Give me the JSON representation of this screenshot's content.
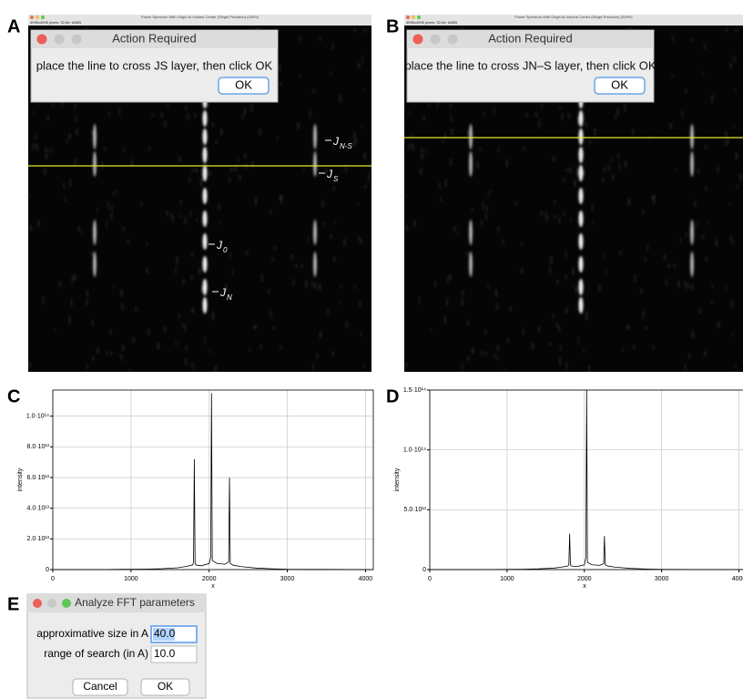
{
  "figure": {
    "panel_labels": [
      "A",
      "B",
      "C",
      "D",
      "E"
    ]
  },
  "image_a": {
    "window_title": "Power Spectrum With Origin At Volume Center (Single Precision) (200%)",
    "window_info": "4096x4096 pixels; 32-bit; 64MB",
    "dialog": {
      "title": "Action Required",
      "message": "place the line to cross JS layer, then click OK",
      "button": "OK"
    },
    "annotations": [
      {
        "main": "J",
        "sub": "N-S"
      },
      {
        "main": "J",
        "sub": "S"
      },
      {
        "main": "J",
        "sub": "0"
      },
      {
        "main": "J",
        "sub": "N"
      }
    ]
  },
  "image_b": {
    "window_title": "Power Spectrum With Origin At Volume Center (Single Precision) (200%)",
    "window_info": "4096x4096 pixels; 32-bit; 64MB",
    "dialog": {
      "title": "Action Required",
      "message": "place the line to cross JN–S layer, then click OK",
      "button": "OK"
    }
  },
  "chart_data": [
    {
      "type": "line",
      "x_label": "x",
      "y_label": "intensity",
      "x": [
        0,
        200,
        400,
        600,
        800,
        1000,
        1200,
        1400,
        1600,
        1700,
        1790,
        1800,
        1810,
        1820,
        1830,
        1900,
        2000,
        2020,
        2030,
        2040,
        2100,
        2200,
        2250,
        2260,
        2270,
        2300,
        2400,
        2500,
        2600,
        2800,
        3000,
        3500,
        4096
      ],
      "series": [
        {
          "color": "#000000",
          "values": [
            0,
            0,
            0,
            0,
            100000000000.0,
            200000000000.0,
            300000000000.0,
            600000000000.0,
            1200000000000.0,
            2000000000000.0,
            3000000000000.0,
            5000000000000.0,
            72000000000000.0,
            4000000000000.0,
            3000000000000.0,
            2500000000000.0,
            4000000000000.0,
            8000000000000.0,
            115000000000000.0,
            6000000000000.0,
            4000000000000.0,
            3500000000000.0,
            5000000000000.0,
            60000000000000.0,
            4000000000000.0,
            3000000000000.0,
            2000000000000.0,
            1500000000000.0,
            1000000000000.0,
            500000000000.0,
            200000000000.0,
            100000000000.0,
            0
          ]
        }
      ],
      "xlim": [
        0,
        4100
      ],
      "ylim": [
        0,
        117000000000000.0
      ],
      "xticks": [
        0,
        1000,
        2000,
        3000,
        4000
      ],
      "yticks": [
        0,
        {
          "value": 20000000000000.0,
          "label": "2.0·10¹³"
        },
        {
          "value": 40000000000000.0,
          "label": "4.0·10¹³"
        },
        {
          "value": 60000000000000.0,
          "label": "6.0·10¹³"
        },
        {
          "value": 80000000000000.0,
          "label": "8.0·10¹³"
        },
        {
          "value": 100000000000000.0,
          "label": "1.0·10¹⁴"
        }
      ],
      "grid": true
    },
    {
      "type": "line",
      "x_label": "x",
      "y_label": "intensity",
      "x": [
        0,
        200,
        400,
        600,
        800,
        1000,
        1200,
        1400,
        1600,
        1700,
        1790,
        1800,
        1810,
        1820,
        1830,
        1900,
        2000,
        2020,
        2030,
        2040,
        2100,
        2200,
        2250,
        2260,
        2270,
        2300,
        2400,
        2500,
        2600,
        2800,
        3000,
        3500,
        4096
      ],
      "series": [
        {
          "color": "#000000",
          "values": [
            0,
            0,
            0,
            0,
            100000000000.0,
            200000000000.0,
            300000000000.0,
            600000000000.0,
            1200000000000.0,
            2000000000000.0,
            3000000000000.0,
            5000000000000.0,
            30000000000000.0,
            4000000000000.0,
            3000000000000.0,
            2500000000000.0,
            4000000000000.0,
            10000000000000.0,
            150000000000000.0,
            6000000000000.0,
            4000000000000.0,
            3500000000000.0,
            5000000000000.0,
            28000000000000.0,
            4000000000000.0,
            3000000000000.0,
            2000000000000.0,
            1500000000000.0,
            1000000000000.0,
            500000000000.0,
            200000000000.0,
            100000000000.0,
            0
          ]
        }
      ],
      "xlim": [
        0,
        4100
      ],
      "ylim": [
        0,
        150000000000000.0
      ],
      "xticks": [
        0,
        1000,
        2000,
        3000,
        4000
      ],
      "yticks": [
        0,
        {
          "value": 50000000000000.0,
          "label": "5.0·10¹³"
        },
        {
          "value": 100000000000000.0,
          "label": "1.0·10¹⁴"
        },
        {
          "value": 150000000000000.0,
          "label": "1.5·10¹⁴"
        }
      ],
      "grid": true
    }
  ],
  "dialog_e": {
    "title": "Analyze FFT parameters",
    "fields": [
      {
        "label": "approximative size in A",
        "value": "40.0"
      },
      {
        "label": "range of search (in A)",
        "value": "10.0"
      }
    ],
    "buttons": [
      "Cancel",
      "OK"
    ]
  }
}
